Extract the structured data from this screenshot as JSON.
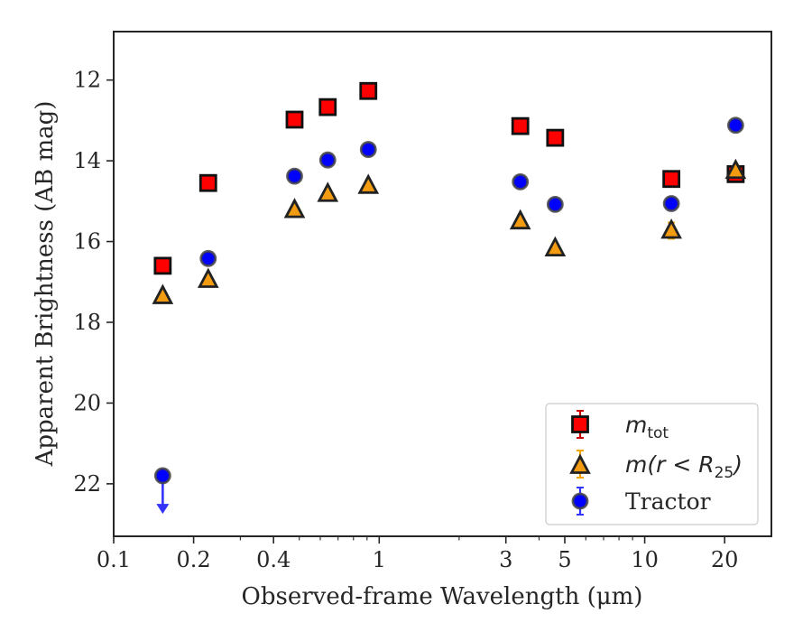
{
  "chart_data": {
    "type": "scatter",
    "title": "",
    "xlabel": "Observed-frame Wavelength (μm)",
    "ylabel": "Apparent Brightness (AB mag)",
    "xscale": "log",
    "xlim": [
      0.1,
      30
    ],
    "ylim": [
      23.3,
      10.8
    ],
    "y_inverted": true,
    "x_ticks": [
      0.1,
      0.2,
      0.4,
      1,
      3,
      5,
      10,
      20
    ],
    "x_tick_labels": [
      "0.1",
      "0.2",
      "0.4",
      "1",
      "3",
      "5",
      "10",
      "20"
    ],
    "y_ticks": [
      12,
      14,
      16,
      18,
      20,
      22
    ],
    "y_tick_labels": [
      "12",
      "14",
      "16",
      "18",
      "20",
      "22"
    ],
    "grid": false,
    "legend_position": "lower-right",
    "series": [
      {
        "name": "m_tot",
        "label_main": "m",
        "label_sub": "tot",
        "marker": "square",
        "color": "#ff0000",
        "edge_color": "#111111",
        "error_color": "#cc0000",
        "x": [
          0.153,
          0.227,
          0.48,
          0.64,
          0.91,
          3.4,
          4.6,
          12.6,
          22.0
        ],
        "y": [
          16.6,
          14.55,
          12.98,
          12.67,
          12.27,
          13.14,
          13.43,
          14.45,
          14.33
        ]
      },
      {
        "name": "m(r < R_25)",
        "label_main": "m(r < R",
        "label_sub": "25",
        "label_close": ")",
        "marker": "triangle",
        "color": "#f39c12",
        "edge_color": "#222222",
        "error_color": "#f0a500",
        "x": [
          0.153,
          0.227,
          0.48,
          0.64,
          0.91,
          3.4,
          4.6,
          12.6,
          22.0
        ],
        "y": [
          17.35,
          16.95,
          15.22,
          14.82,
          14.62,
          15.5,
          16.17,
          15.73,
          14.25
        ],
        "yerr": [
          0.05,
          0.05,
          0.05,
          0.05,
          0.05,
          0.05,
          0.05,
          0.2,
          0.05
        ]
      },
      {
        "name": "Tractor",
        "label_main": "Tractor",
        "marker": "circle",
        "color": "#0000ff",
        "edge_color": "#444444",
        "error_color": "#3333ff",
        "x": [
          0.153,
          0.227,
          0.48,
          0.64,
          0.91,
          3.4,
          4.6,
          12.6,
          22.0
        ],
        "y": [
          21.8,
          16.42,
          14.38,
          13.98,
          13.72,
          14.52,
          15.08,
          15.06,
          13.12
        ],
        "upper_limit_index": 0,
        "upper_limit_to": 22.7
      }
    ]
  }
}
